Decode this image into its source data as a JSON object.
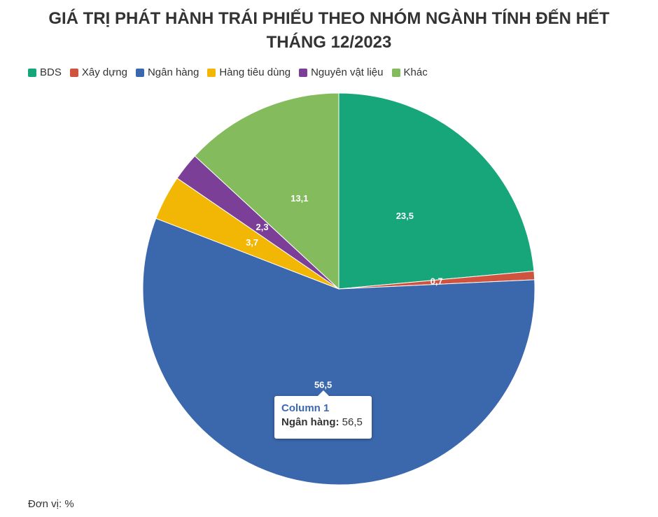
{
  "chart_data": {
    "type": "pie",
    "title": "GIÁ TRỊ PHÁT HÀNH TRÁI PHIẾU THEO NHÓM NGÀNH TÍNH ĐẾN HẾT THÁNG 12/2023",
    "categories": [
      "BDS",
      "Xây dựng",
      "Ngân hàng",
      "Hàng tiêu dùng",
      "Nguyên vật liệu",
      "Khác"
    ],
    "values": [
      23.5,
      0.7,
      56.5,
      3.7,
      2.3,
      13.1
    ],
    "value_labels": [
      "23,5",
      "0,7",
      "56,5",
      "3,7",
      "2,3",
      "13,1"
    ],
    "colors": [
      "#16a67a",
      "#d05340",
      "#3b68ad",
      "#f2b705",
      "#7c3f98",
      "#84bb5c"
    ],
    "legend": "top",
    "note": "Đơn vị: %",
    "tooltip": {
      "title": "Column 1",
      "label": "Ngân hàng:",
      "value": "56,5"
    }
  }
}
